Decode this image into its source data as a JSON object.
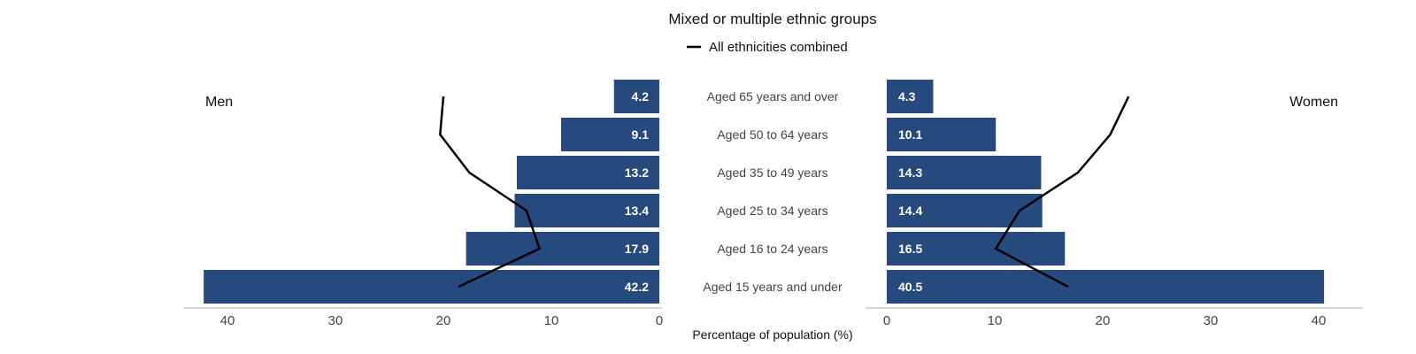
{
  "chart_data": {
    "type": "bar",
    "subtype": "population-pyramid",
    "title": "Mixed or multiple ethnic groups",
    "legend": [
      {
        "label": "All ethnicities combined",
        "type": "line",
        "color": "#000000"
      }
    ],
    "legend_position": "top-center",
    "categories": [
      "Aged 65 years and over",
      "Aged 50 to 64 years",
      "Aged 35 to 49 years",
      "Aged 25 to 34 years",
      "Aged 16 to 24 years",
      "Aged 15 years and under"
    ],
    "left_panel_label": "Men",
    "right_panel_label": "Women",
    "xlabel": "Percentage of population (%)",
    "xlim": [
      0,
      40
    ],
    "xticks": [
      0,
      10,
      20,
      30,
      40
    ],
    "bar_color": "#264a7e",
    "series": [
      {
        "group": "Men",
        "kind": "bar",
        "values": [
          4.2,
          9.1,
          13.2,
          13.4,
          17.9,
          42.2
        ]
      },
      {
        "group": "Women",
        "kind": "bar",
        "values": [
          4.3,
          10.1,
          14.3,
          14.4,
          16.5,
          40.5
        ]
      },
      {
        "group": "Men",
        "kind": "line",
        "name": "All ethnicities combined",
        "values": [
          20.0,
          20.3,
          17.6,
          12.3,
          11.1,
          18.6
        ]
      },
      {
        "group": "Women",
        "kind": "line",
        "name": "All ethnicities combined",
        "values": [
          22.4,
          20.7,
          17.7,
          12.3,
          10.1,
          16.8
        ]
      }
    ],
    "grid": false
  }
}
